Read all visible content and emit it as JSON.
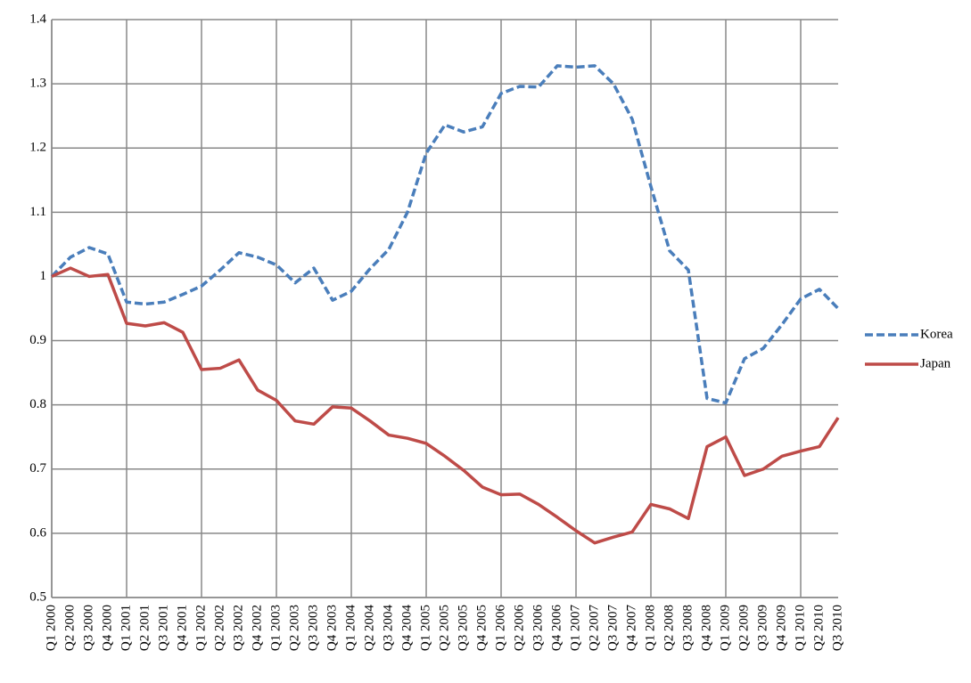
{
  "chart_data": {
    "type": "line",
    "categories": [
      "Q1 2000",
      "Q2 2000",
      "Q3 2000",
      "Q4 2000",
      "Q1 2001",
      "Q2 2001",
      "Q3 2001",
      "Q4 2001",
      "Q1 2002",
      "Q2 2002",
      "Q3 2002",
      "Q4 2002",
      "Q1 2003",
      "Q2 2003",
      "Q3 2003",
      "Q4 2003",
      "Q1 2004",
      "Q2 2004",
      "Q3 2004",
      "Q4 2004",
      "Q1 2005",
      "Q2 2005",
      "Q3 2005",
      "Q4 2005",
      "Q1 2006",
      "Q2 2006",
      "Q3 2006",
      "Q4 2006",
      "Q1 2007",
      "Q2 2007",
      "Q3 2007",
      "Q4 2007",
      "Q1 2008",
      "Q2 2008",
      "Q3 2008",
      "Q4 2008",
      "Q1 2009",
      "Q2 2009",
      "Q3 2009",
      "Q4 2009",
      "Q1 2010",
      "Q2 2010",
      "Q3 2010"
    ],
    "series": [
      {
        "name": "Korea",
        "color": "#4a7ebb",
        "dashed": true,
        "values": [
          1.0,
          1.03,
          1.045,
          1.035,
          0.96,
          0.957,
          0.96,
          0.972,
          0.985,
          1.01,
          1.037,
          1.03,
          1.018,
          0.99,
          1.013,
          0.963,
          0.977,
          1.012,
          1.042,
          1.1,
          1.192,
          1.236,
          1.225,
          1.233,
          1.285,
          1.296,
          1.295,
          1.328,
          1.326,
          1.328,
          1.3,
          1.245,
          1.14,
          1.04,
          1.01,
          0.81,
          0.803,
          0.872,
          0.888,
          0.925,
          0.965,
          0.98,
          0.95
        ]
      },
      {
        "name": "Japan",
        "color": "#be4b48",
        "dashed": false,
        "values": [
          1.0,
          1.013,
          1.0,
          1.003,
          0.927,
          0.923,
          0.928,
          0.913,
          0.855,
          0.857,
          0.87,
          0.823,
          0.807,
          0.775,
          0.77,
          0.797,
          0.795,
          0.775,
          0.753,
          0.748,
          0.74,
          0.72,
          0.698,
          0.672,
          0.66,
          0.661,
          0.645,
          0.625,
          0.604,
          0.585,
          0.594,
          0.602,
          0.645,
          0.638,
          0.623,
          0.735,
          0.75,
          0.69,
          0.7,
          0.72,
          0.728,
          0.735,
          0.78
        ]
      }
    ],
    "ylim": [
      0.5,
      1.4
    ],
    "yticks": [
      0.5,
      0.6,
      0.7,
      0.8,
      0.9,
      1,
      1.1,
      1.2,
      1.3,
      1.4
    ],
    "grid": true,
    "legend": "right"
  }
}
